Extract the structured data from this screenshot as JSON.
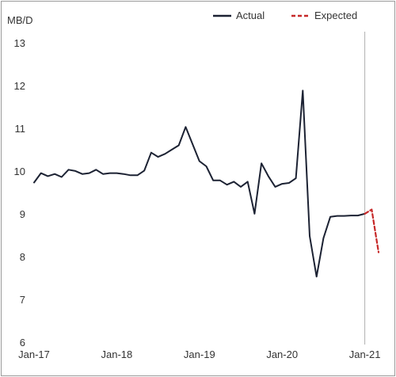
{
  "chart_data": {
    "type": "line",
    "ylabel": "MB/D",
    "ylim": [
      6,
      13
    ],
    "yticks": [
      6,
      7,
      8,
      9,
      10,
      11,
      12,
      13
    ],
    "xlim": [
      "2017-01",
      "2021-03"
    ],
    "xticks": [
      {
        "date": "2017-01",
        "label": "Jan-17"
      },
      {
        "date": "2018-01",
        "label": "Jan-18"
      },
      {
        "date": "2019-01",
        "label": "Jan-19"
      },
      {
        "date": "2020-01",
        "label": "Jan-20"
      },
      {
        "date": "2021-01",
        "label": "Jan-21"
      }
    ],
    "reference_line": {
      "date": "2021-01",
      "color": "#b0b0b0"
    },
    "grid": false,
    "legend_position": "top-right",
    "series": [
      {
        "name": "Actual",
        "color": "#1c2233",
        "style": "solid",
        "x": [
          "2017-01",
          "2017-02",
          "2017-03",
          "2017-04",
          "2017-05",
          "2017-06",
          "2017-07",
          "2017-08",
          "2017-09",
          "2017-10",
          "2017-11",
          "2017-12",
          "2018-01",
          "2018-02",
          "2018-03",
          "2018-04",
          "2018-05",
          "2018-06",
          "2018-07",
          "2018-08",
          "2018-09",
          "2018-10",
          "2018-11",
          "2018-12",
          "2019-01",
          "2019-02",
          "2019-03",
          "2019-04",
          "2019-05",
          "2019-06",
          "2019-07",
          "2019-08",
          "2019-09",
          "2019-10",
          "2019-11",
          "2019-12",
          "2020-01",
          "2020-02",
          "2020-03",
          "2020-04",
          "2020-05",
          "2020-06",
          "2020-07",
          "2020-08",
          "2020-09",
          "2020-10",
          "2020-11",
          "2020-12",
          "2021-01"
        ],
        "values": [
          9.75,
          9.97,
          9.9,
          9.95,
          9.88,
          10.05,
          10.02,
          9.95,
          9.97,
          10.05,
          9.95,
          9.97,
          9.97,
          9.95,
          9.92,
          9.92,
          10.03,
          10.45,
          10.35,
          10.42,
          10.52,
          10.62,
          11.05,
          10.65,
          10.25,
          10.13,
          9.8,
          9.8,
          9.7,
          9.77,
          9.65,
          9.77,
          9.02,
          10.2,
          9.9,
          9.65,
          9.72,
          9.74,
          9.85,
          11.9,
          8.5,
          7.55,
          8.45,
          8.95,
          8.97,
          8.97,
          8.98,
          8.98,
          9.02
        ]
      },
      {
        "name": "Expected",
        "color": "#c62828",
        "style": "dashed",
        "x": [
          "2021-01",
          "2021-02",
          "2021-03"
        ],
        "values": [
          9.02,
          9.12,
          8.12
        ]
      }
    ]
  }
}
